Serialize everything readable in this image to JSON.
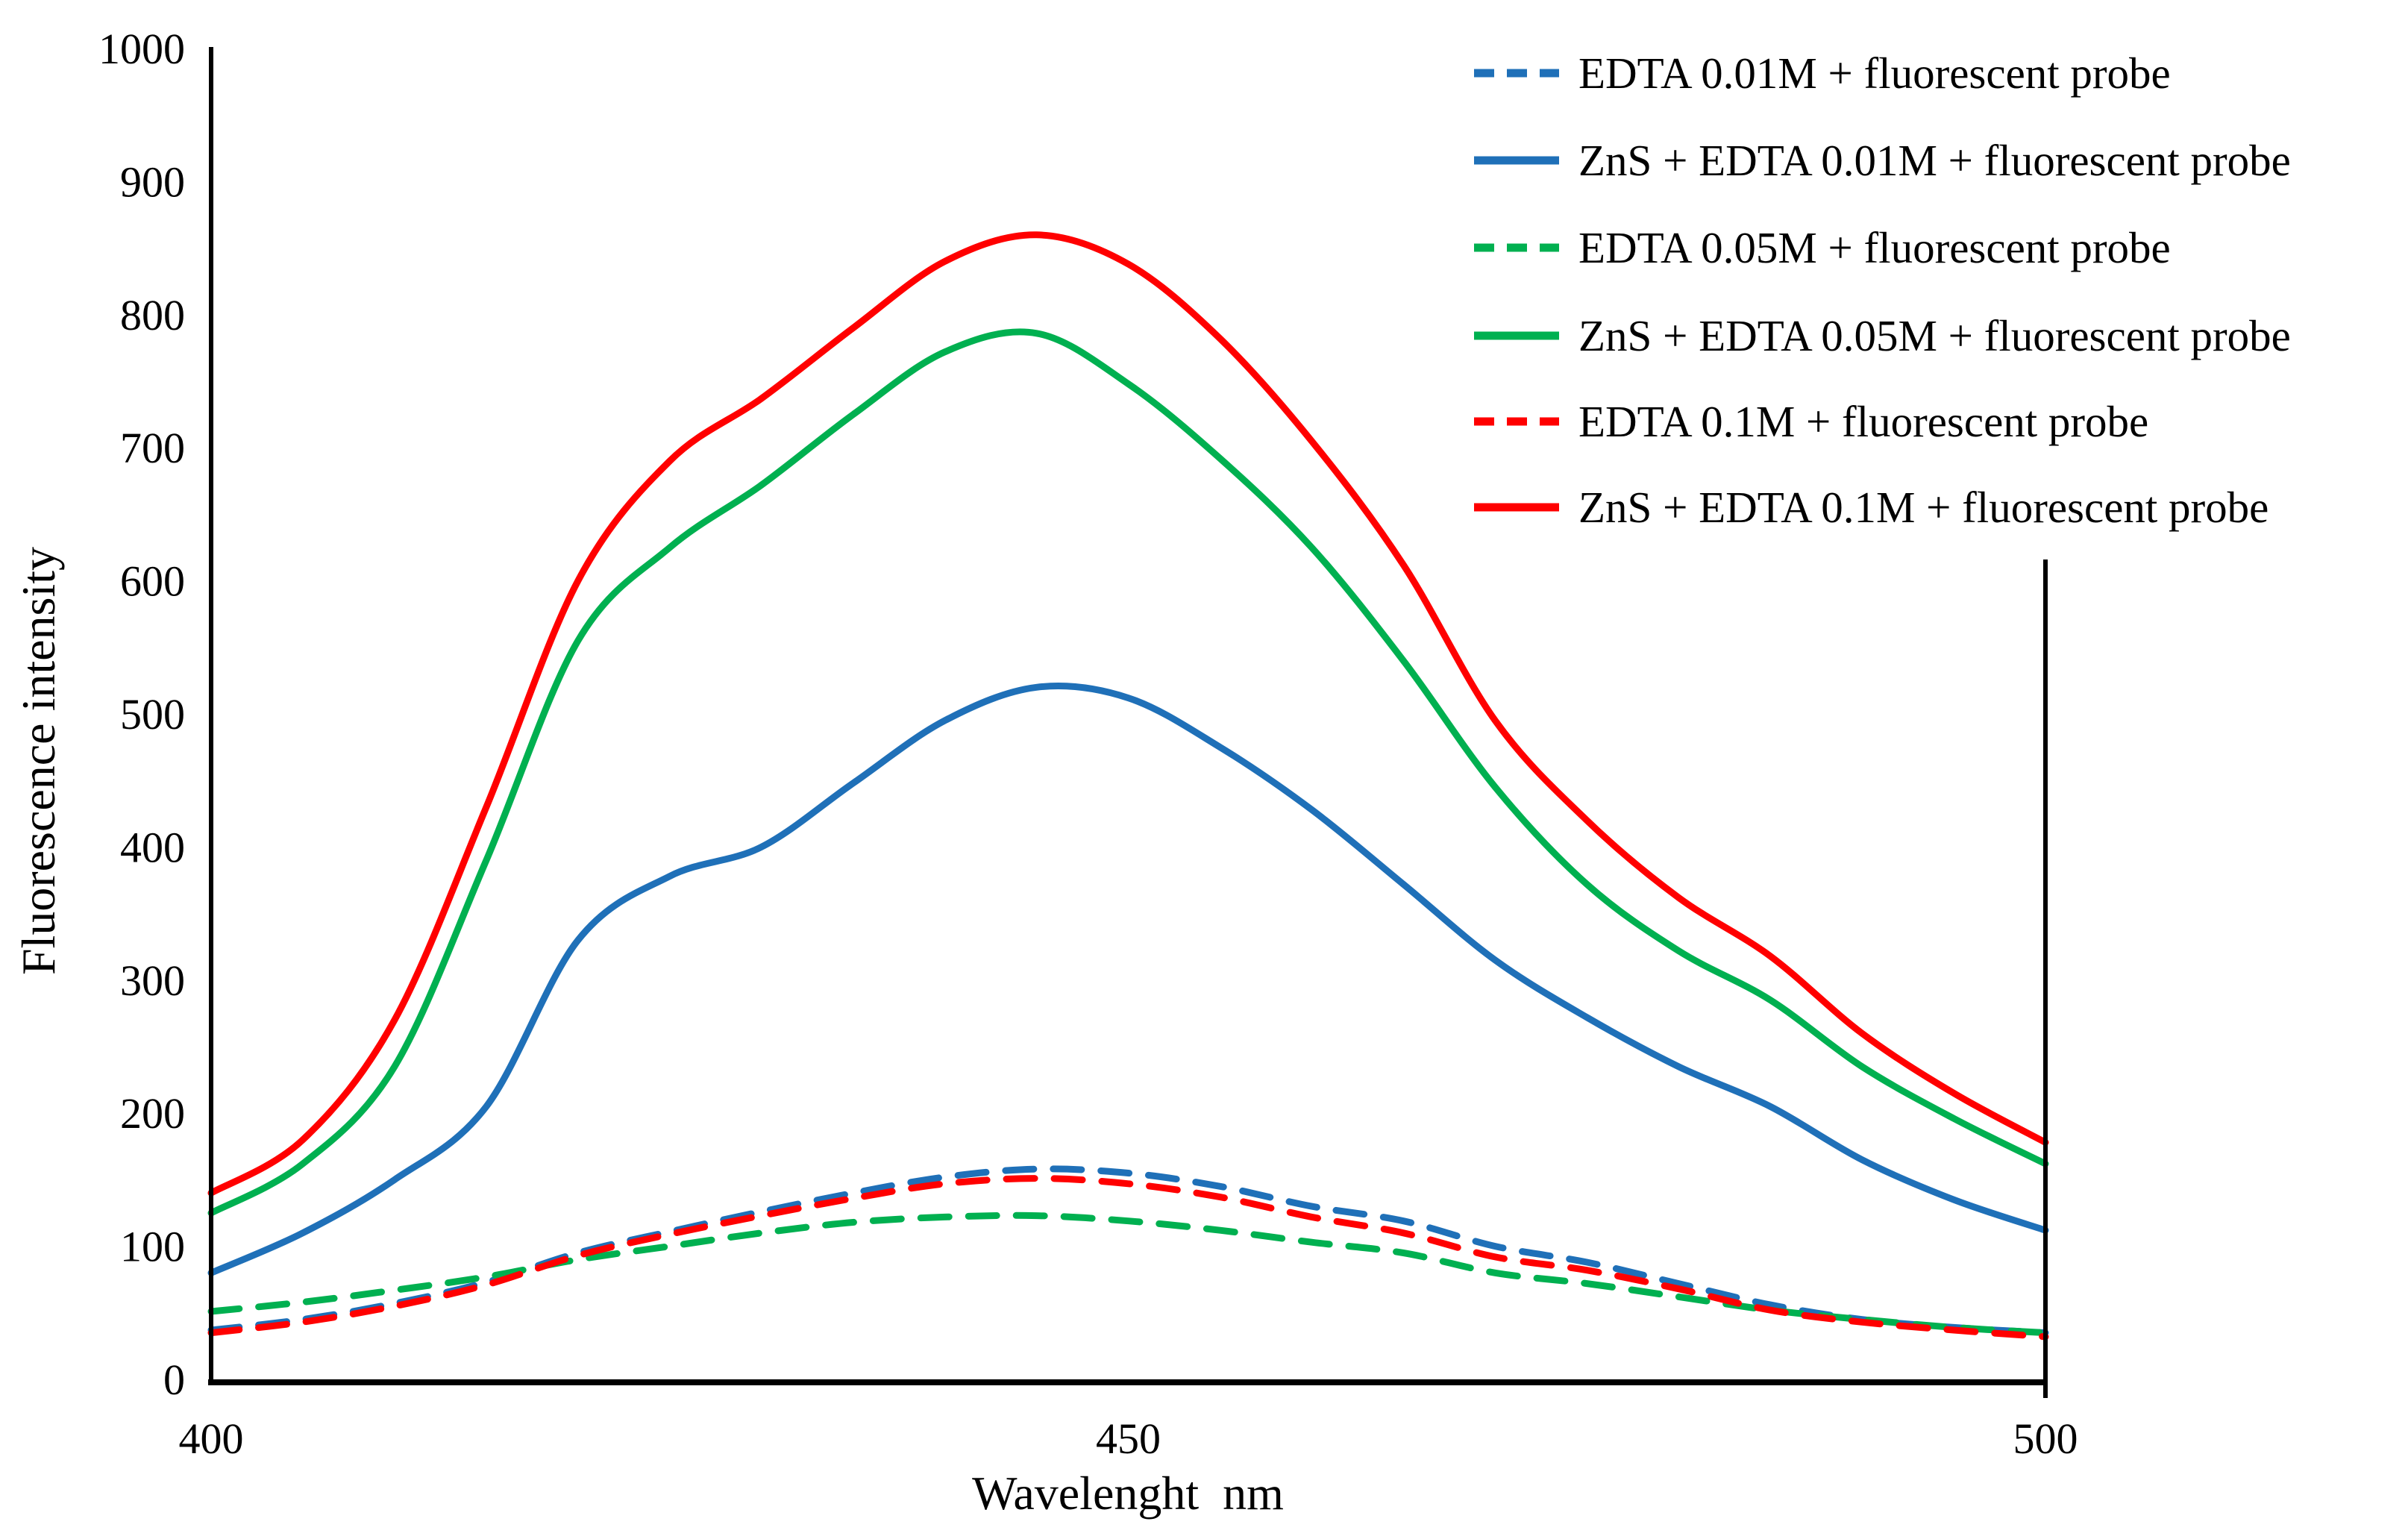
{
  "axes": {
    "x_label": "Wavelenght  nm",
    "y_label": "Fluorescence intensity",
    "x_ticks": [
      400,
      450,
      500
    ],
    "y_ticks": [
      0,
      100,
      200,
      300,
      400,
      500,
      600,
      700,
      800,
      900,
      1000
    ]
  },
  "colors": {
    "blue": "#1f70b8",
    "green": "#00b050",
    "red": "#ff0000",
    "axis": "#000000",
    "background": "#ffffff"
  },
  "chart_data": {
    "type": "line",
    "title": "",
    "xlabel": "Wavelenght  nm",
    "ylabel": "Fluorescence intensity",
    "xlim": [
      400,
      500
    ],
    "ylim": [
      0,
      1000
    ],
    "x_ticks": [
      400,
      450,
      500
    ],
    "y_ticks": [
      0,
      100,
      200,
      300,
      400,
      500,
      600,
      700,
      800,
      900,
      1000
    ],
    "grid": false,
    "legend_position": "top-right",
    "x": [
      400,
      405,
      410,
      415,
      420,
      425,
      430,
      435,
      440,
      445,
      450,
      455,
      460,
      465,
      470,
      475,
      480,
      485,
      490,
      495,
      500
    ],
    "series": [
      {
        "name": "EDTA  0.01M + fluorescent probe",
        "color": "#1f70b8",
        "style": "dashed",
        "values": [
          37,
          45,
          57,
          73,
          95,
          111,
          126,
          140,
          152,
          158,
          155,
          145,
          130,
          119,
          100,
          88,
          72,
          56,
          45,
          39,
          35
        ]
      },
      {
        "name": "ZnS + EDTA  0.01M + fluorescent probe",
        "color": "#1f70b8",
        "style": "solid",
        "values": [
          80,
          110,
          150,
          205,
          330,
          378,
          400,
          448,
          495,
          520,
          512,
          475,
          428,
          372,
          315,
          272,
          235,
          205,
          165,
          135,
          112
        ]
      },
      {
        "name": "EDTA  0.05M + fluorescent probe",
        "color": "#00b050",
        "style": "dashed",
        "values": [
          51,
          58,
          67,
          77,
          90,
          100,
          110,
          118,
          122,
          123,
          119,
          112,
          103,
          95,
          80,
          72,
          62,
          52,
          45,
          39,
          35
        ]
      },
      {
        "name": "ZnS + EDTA  0.05M + fluorescent probe",
        "color": "#00b050",
        "style": "solid",
        "values": [
          125,
          162,
          235,
          390,
          555,
          625,
          672,
          725,
          772,
          786,
          748,
          692,
          625,
          540,
          445,
          372,
          322,
          285,
          235,
          196,
          162
        ]
      },
      {
        "name": "EDTA  0.1M + fluorescent probe",
        "color": "#ff0000",
        "style": "dashed",
        "values": [
          35,
          43,
          55,
          71,
          93,
          109,
          123,
          136,
          147,
          151,
          147,
          137,
          122,
          110,
          92,
          82,
          68,
          52,
          43,
          37,
          32
        ]
      },
      {
        "name": "ZnS + EDTA  0.1M + fluorescent probe",
        "color": "#ff0000",
        "style": "solid",
        "values": [
          140,
          180,
          270,
          430,
          600,
          690,
          737,
          790,
          840,
          860,
          838,
          782,
          705,
          612,
          495,
          420,
          362,
          318,
          260,
          215,
          178
        ]
      }
    ]
  }
}
